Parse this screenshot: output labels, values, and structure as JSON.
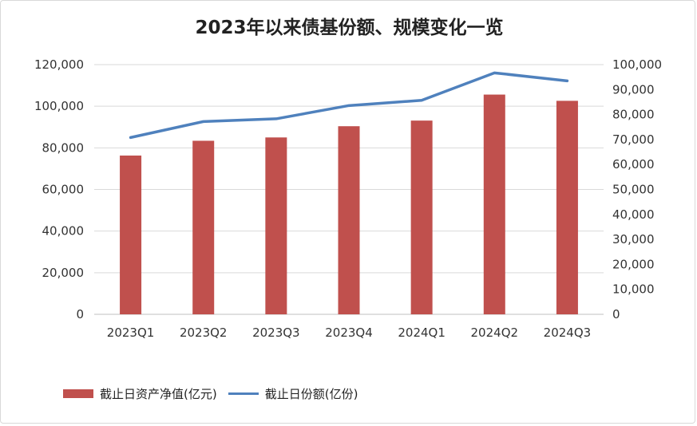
{
  "chart_data": {
    "type": "bar+line",
    "title": "2023年以来债基份额、规模变化一览",
    "categories": [
      "2023Q1",
      "2023Q2",
      "2023Q3",
      "2023Q4",
      "2024Q1",
      "2024Q2",
      "2024Q3"
    ],
    "series": [
      {
        "name": "截止日资产净值(亿元)",
        "type": "bar",
        "axis": "left",
        "color": "#c0504d",
        "values": [
          76300,
          83400,
          85000,
          90400,
          93100,
          105600,
          102600
        ]
      },
      {
        "name": "截止日份额(亿份)",
        "type": "line",
        "axis": "right",
        "color": "#4f81bd",
        "values": [
          70800,
          77200,
          78300,
          83600,
          85700,
          96700,
          93500
        ]
      }
    ],
    "y_left": {
      "min": 0,
      "max": 120000,
      "ticks": [
        "0",
        "20,000",
        "40,000",
        "60,000",
        "80,000",
        "100,000",
        "120,000"
      ]
    },
    "y_right": {
      "min": 0,
      "max": 100000,
      "ticks": [
        "0",
        "10,000",
        "20,000",
        "30,000",
        "40,000",
        "50,000",
        "60,000",
        "70,000",
        "80,000",
        "90,000",
        "100,000"
      ]
    },
    "grid": true,
    "legend_position": "bottom-left"
  }
}
